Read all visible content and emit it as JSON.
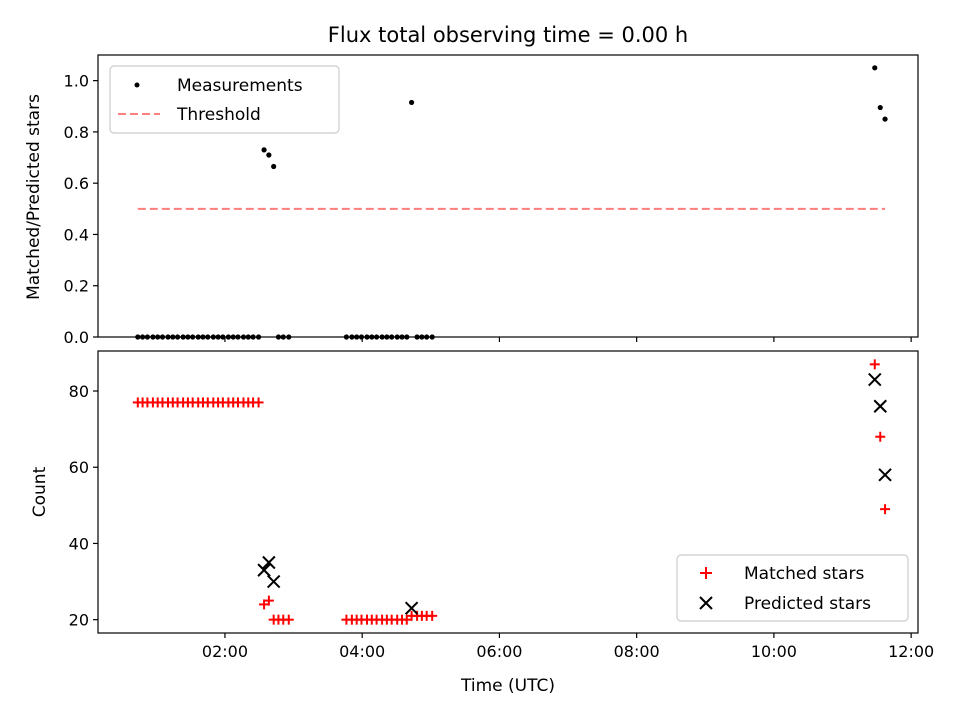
{
  "chart_data": [
    {
      "type": "scatter",
      "title": "Flux total observing time = 0.00 h",
      "ylabel": "Matched/Predicted stars",
      "xlabel": "",
      "xlim": [
        0.15,
        12.1
      ],
      "ylim": [
        0.0,
        1.1
      ],
      "yticks": [
        0.0,
        0.2,
        0.4,
        0.6,
        0.8,
        1.0
      ],
      "ytick_labels": [
        "0.0",
        "0.2",
        "0.4",
        "0.6",
        "0.8",
        "1.0"
      ],
      "legend_position": "top-left",
      "grid": false,
      "series": [
        {
          "name": "Measurements",
          "kind": "points",
          "color": "#000000",
          "points": [
            [
              0.73,
              0
            ],
            [
              0.8,
              0
            ],
            [
              0.87,
              0
            ],
            [
              0.95,
              0
            ],
            [
              1.02,
              0
            ],
            [
              1.09,
              0
            ],
            [
              1.17,
              0
            ],
            [
              1.24,
              0
            ],
            [
              1.31,
              0
            ],
            [
              1.39,
              0
            ],
            [
              1.46,
              0
            ],
            [
              1.53,
              0
            ],
            [
              1.61,
              0
            ],
            [
              1.68,
              0
            ],
            [
              1.75,
              0
            ],
            [
              1.83,
              0
            ],
            [
              1.9,
              0
            ],
            [
              1.97,
              0
            ],
            [
              2.05,
              0
            ],
            [
              2.12,
              0
            ],
            [
              2.19,
              0
            ],
            [
              2.27,
              0
            ],
            [
              2.34,
              0
            ],
            [
              2.41,
              0
            ],
            [
              2.49,
              0
            ],
            [
              2.57,
              0.73
            ],
            [
              2.64,
              0.71
            ],
            [
              2.71,
              0.665
            ],
            [
              2.78,
              0
            ],
            [
              2.85,
              0
            ],
            [
              2.93,
              0
            ],
            [
              3.77,
              0
            ],
            [
              3.85,
              0
            ],
            [
              3.92,
              0
            ],
            [
              3.99,
              0
            ],
            [
              4.07,
              0
            ],
            [
              4.14,
              0
            ],
            [
              4.21,
              0
            ],
            [
              4.29,
              0
            ],
            [
              4.36,
              0
            ],
            [
              4.43,
              0
            ],
            [
              4.51,
              0
            ],
            [
              4.58,
              0
            ],
            [
              4.65,
              0
            ],
            [
              4.72,
              0.915
            ],
            [
              4.8,
              0
            ],
            [
              4.87,
              0
            ],
            [
              4.94,
              0
            ],
            [
              5.02,
              0
            ],
            [
              11.47,
              1.05
            ],
            [
              11.55,
              0.895
            ],
            [
              11.62,
              0.85
            ]
          ]
        },
        {
          "name": "Threshold",
          "kind": "dashed-line",
          "color": "#ff7f7f",
          "points": [
            [
              0.73,
              0.5
            ],
            [
              11.62,
              0.5
            ]
          ]
        }
      ]
    },
    {
      "type": "scatter",
      "title": "",
      "ylabel": "Count",
      "xlabel": "Time (UTC)",
      "xlim": [
        0.15,
        12.1
      ],
      "ylim": [
        16.5,
        90.5
      ],
      "yticks": [
        20,
        40,
        60,
        80
      ],
      "ytick_labels": [
        "20",
        "40",
        "60",
        "80"
      ],
      "xticks": [
        2,
        4,
        6,
        8,
        10,
        12
      ],
      "xtick_labels": [
        "02:00",
        "04:00",
        "06:00",
        "08:00",
        "10:00",
        "12:00"
      ],
      "legend_position": "lower-right",
      "grid": false,
      "series": [
        {
          "name": "Matched stars",
          "marker": "plus",
          "color": "#ff0000",
          "points": [
            [
              0.73,
              77
            ],
            [
              0.8,
              77
            ],
            [
              0.87,
              77
            ],
            [
              0.95,
              77
            ],
            [
              1.02,
              77
            ],
            [
              1.09,
              77
            ],
            [
              1.17,
              77
            ],
            [
              1.24,
              77
            ],
            [
              1.31,
              77
            ],
            [
              1.39,
              77
            ],
            [
              1.46,
              77
            ],
            [
              1.53,
              77
            ],
            [
              1.61,
              77
            ],
            [
              1.68,
              77
            ],
            [
              1.75,
              77
            ],
            [
              1.83,
              77
            ],
            [
              1.9,
              77
            ],
            [
              1.97,
              77
            ],
            [
              2.05,
              77
            ],
            [
              2.12,
              77
            ],
            [
              2.19,
              77
            ],
            [
              2.27,
              77
            ],
            [
              2.34,
              77
            ],
            [
              2.41,
              77
            ],
            [
              2.49,
              77
            ],
            [
              2.57,
              24
            ],
            [
              2.64,
              25
            ],
            [
              2.71,
              20
            ],
            [
              2.78,
              20
            ],
            [
              2.85,
              20
            ],
            [
              2.93,
              20
            ],
            [
              3.77,
              20
            ],
            [
              3.85,
              20
            ],
            [
              3.92,
              20
            ],
            [
              3.99,
              20
            ],
            [
              4.07,
              20
            ],
            [
              4.14,
              20
            ],
            [
              4.21,
              20
            ],
            [
              4.29,
              20
            ],
            [
              4.36,
              20
            ],
            [
              4.43,
              20
            ],
            [
              4.51,
              20
            ],
            [
              4.58,
              20
            ],
            [
              4.65,
              20
            ],
            [
              4.72,
              21
            ],
            [
              4.8,
              21
            ],
            [
              4.87,
              21
            ],
            [
              4.94,
              21
            ],
            [
              5.02,
              21
            ],
            [
              11.47,
              87
            ],
            [
              11.55,
              68
            ],
            [
              11.62,
              49
            ]
          ]
        },
        {
          "name": "Predicted stars",
          "marker": "x",
          "color": "#000000",
          "points": [
            [
              2.57,
              33
            ],
            [
              2.64,
              35
            ],
            [
              2.71,
              30
            ],
            [
              4.72,
              23
            ],
            [
              11.47,
              83
            ],
            [
              11.55,
              76
            ],
            [
              11.62,
              58
            ]
          ]
        }
      ]
    }
  ]
}
